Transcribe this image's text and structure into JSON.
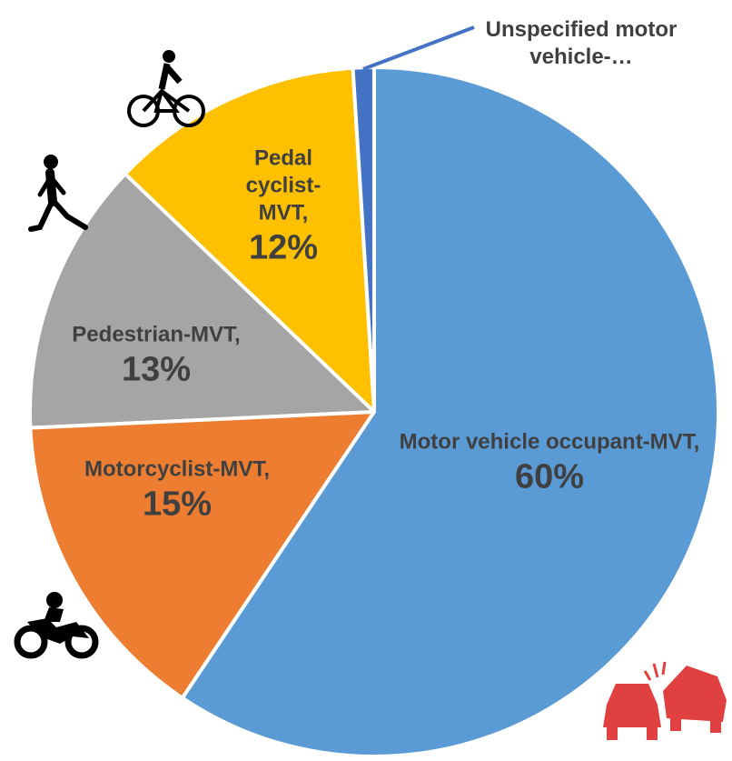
{
  "chart_data": {
    "type": "pie",
    "categories": [
      "Motor vehicle occupant-MVT,",
      "Motorcyclist-MVT,",
      "Pedestrian-MVT,",
      "Pedal cyclist-MVT,",
      "Unspecified motor vehicle-…"
    ],
    "values": [
      60,
      15,
      13,
      12,
      1
    ],
    "value_labels": [
      "60%",
      "15%",
      "13%",
      "12%",
      null
    ],
    "colors": [
      "#5b9bd5",
      "#ed7d31",
      "#a5a5a5",
      "#ffc000",
      "#4472c4"
    ]
  }
}
